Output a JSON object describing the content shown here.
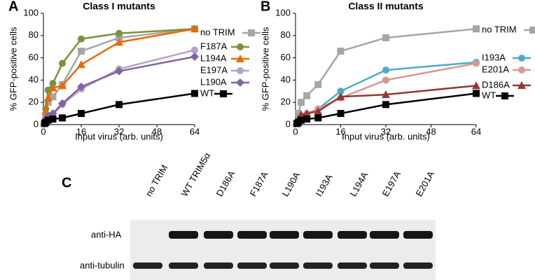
{
  "chart_data": [
    {
      "type": "line",
      "panel": "A",
      "title": "Class I mutants",
      "xlabel": "Input virus (arb. units)",
      "ylabel": "% GFP-positive cells",
      "x": [
        0.5,
        1,
        2,
        4,
        8,
        16,
        32,
        64
      ],
      "xlim": [
        0,
        64
      ],
      "xticks": [
        0,
        16,
        32,
        48,
        64
      ],
      "ylim": [
        0,
        100
      ],
      "yticks": [
        0,
        20,
        40,
        60,
        80,
        100
      ],
      "legend": "right",
      "series": [
        {
          "name": "no TRIM",
          "color": "#a6a6a6",
          "marker": "square",
          "values": [
            1,
            8,
            20,
            25,
            36,
            66,
            78,
            86
          ]
        },
        {
          "name": "F187A",
          "color": "#77933c",
          "marker": "circle",
          "values": [
            2,
            14,
            31,
            37,
            55,
            77,
            82,
            86
          ]
        },
        {
          "name": "L194A",
          "color": "#e46c0a",
          "marker": "triangle",
          "values": [
            2,
            12,
            24,
            33,
            35,
            54,
            74,
            86
          ]
        },
        {
          "name": "E197A",
          "color": "#b3a2c7",
          "marker": "circle",
          "values": [
            1,
            5,
            8,
            9,
            18,
            32,
            50,
            67
          ]
        },
        {
          "name": "L190A",
          "color": "#8064a2",
          "marker": "diamond",
          "values": [
            1,
            5,
            8,
            10,
            19,
            34,
            48,
            61
          ]
        },
        {
          "name": "WT",
          "color": "#000000",
          "marker": "square",
          "values": [
            1,
            2,
            4,
            5,
            6,
            10,
            18,
            28
          ]
        }
      ]
    },
    {
      "type": "line",
      "panel": "B",
      "title": "Class II mutants",
      "xlabel": "Input virus (arb. units)",
      "ylabel": "% GFP-positive cells",
      "x": [
        0.5,
        1,
        2,
        4,
        8,
        16,
        32,
        64
      ],
      "xlim": [
        0,
        64
      ],
      "xticks": [
        0,
        16,
        32,
        48,
        64
      ],
      "ylim": [
        0,
        100
      ],
      "yticks": [
        0,
        20,
        40,
        60,
        80,
        100
      ],
      "legend": "right",
      "series": [
        {
          "name": "no TRIM",
          "color": "#a6a6a6",
          "marker": "square",
          "values": [
            1,
            10,
            20,
            26,
            36,
            66,
            78,
            86
          ]
        },
        {
          "name": "I193A",
          "color": "#4bacc6",
          "marker": "circle",
          "values": [
            1,
            4,
            7,
            9,
            14,
            30,
            49,
            56
          ]
        },
        {
          "name": "E201A",
          "color": "#d99694",
          "marker": "circle",
          "values": [
            1,
            4,
            7,
            10,
            14,
            24,
            40,
            55
          ]
        },
        {
          "name": "D186A",
          "color": "#953735",
          "marker": "triangle",
          "values": [
            1,
            5,
            9,
            10,
            12,
            25,
            27,
            35
          ]
        },
        {
          "name": "WT",
          "color": "#000000",
          "marker": "square",
          "values": [
            1,
            2,
            4,
            5,
            6,
            10,
            18,
            28
          ]
        }
      ]
    }
  ],
  "blot": {
    "panel": "C",
    "lanes": [
      "no TRIM",
      "WT TRIM5α",
      "D186A",
      "F187A",
      "L190A",
      "I193A",
      "L194A",
      "E197A",
      "E201A"
    ],
    "rows": [
      "anti-HA",
      "anti-tubulin"
    ]
  }
}
